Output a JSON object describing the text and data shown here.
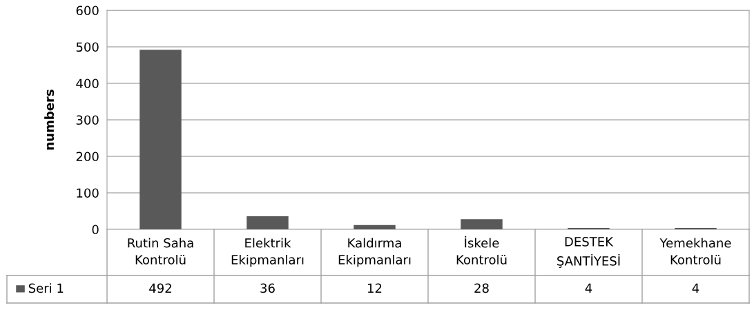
{
  "chart_data": {
    "type": "bar",
    "ylabel": "numbers",
    "categories": [
      "Rutin Saha\nKontrolü",
      "Elektrik\nEkipmanları",
      "Kaldırma\nEkipmanları",
      "İskele\nKontrolü",
      "DESTEK\nŞANTİYESİ",
      "Yemekhane\nKontrolü"
    ],
    "series": [
      {
        "name": "Seri 1",
        "color": "#595959",
        "values": [
          492,
          36,
          12,
          28,
          4,
          4
        ]
      }
    ],
    "ylim": [
      0,
      600
    ],
    "yticks": [
      0,
      100,
      200,
      300,
      400,
      500,
      600
    ],
    "grid": "y",
    "data_labels": true
  }
}
